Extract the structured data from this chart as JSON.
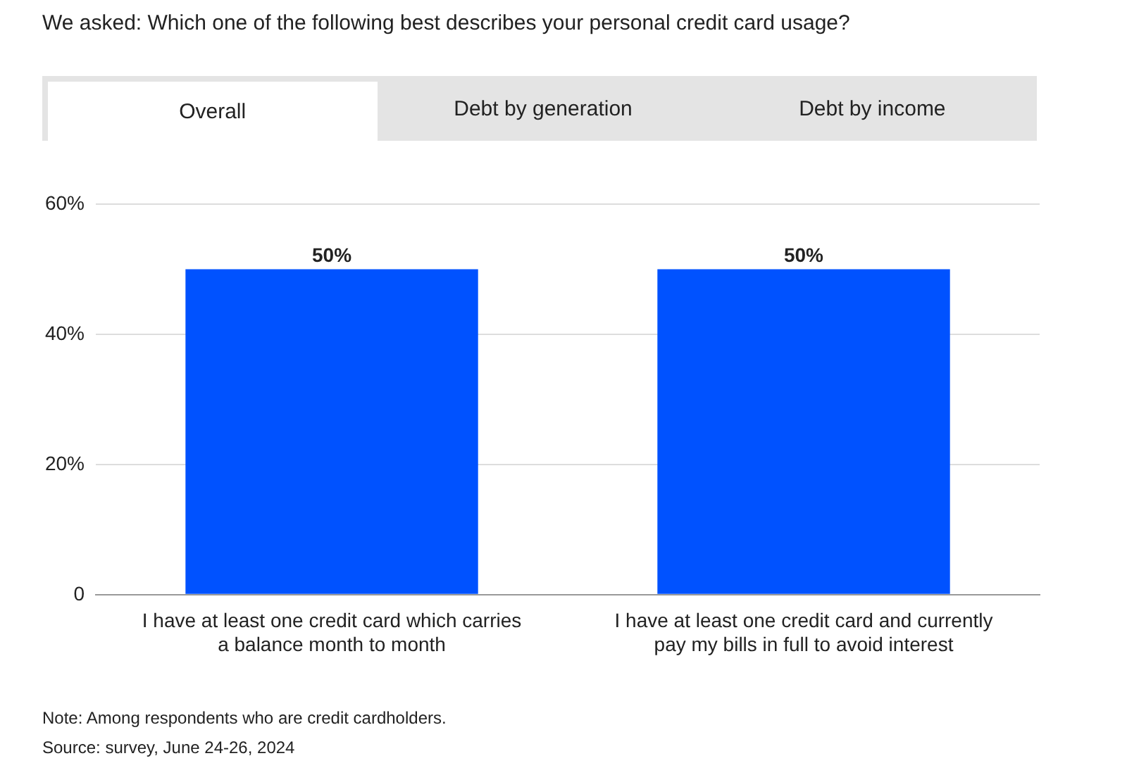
{
  "chart_data": {
    "type": "bar",
    "title": "We asked: Which one of the following best describes your personal credit card usage?",
    "categories": [
      "I have at least one credit card which carries a balance month to month",
      "I have at least one credit card and currently pay my bills in full to avoid interest"
    ],
    "values": [
      50,
      50
    ],
    "value_labels": [
      "50%",
      "50%"
    ],
    "color": "#0052ff",
    "ylim": [
      0,
      60
    ],
    "yticks": [
      {
        "value": 0,
        "label": "0"
      },
      {
        "value": 20,
        "label": "20%"
      },
      {
        "value": 40,
        "label": "40%"
      },
      {
        "value": 60,
        "label": "60%"
      }
    ],
    "grid": "y",
    "annotations": [
      "Overall",
      "Debt by generation",
      "Debt by income",
      "Note: Among respondents who are credit cardholders.",
      "Source: survey, June 24-26, 2024"
    ]
  }
}
